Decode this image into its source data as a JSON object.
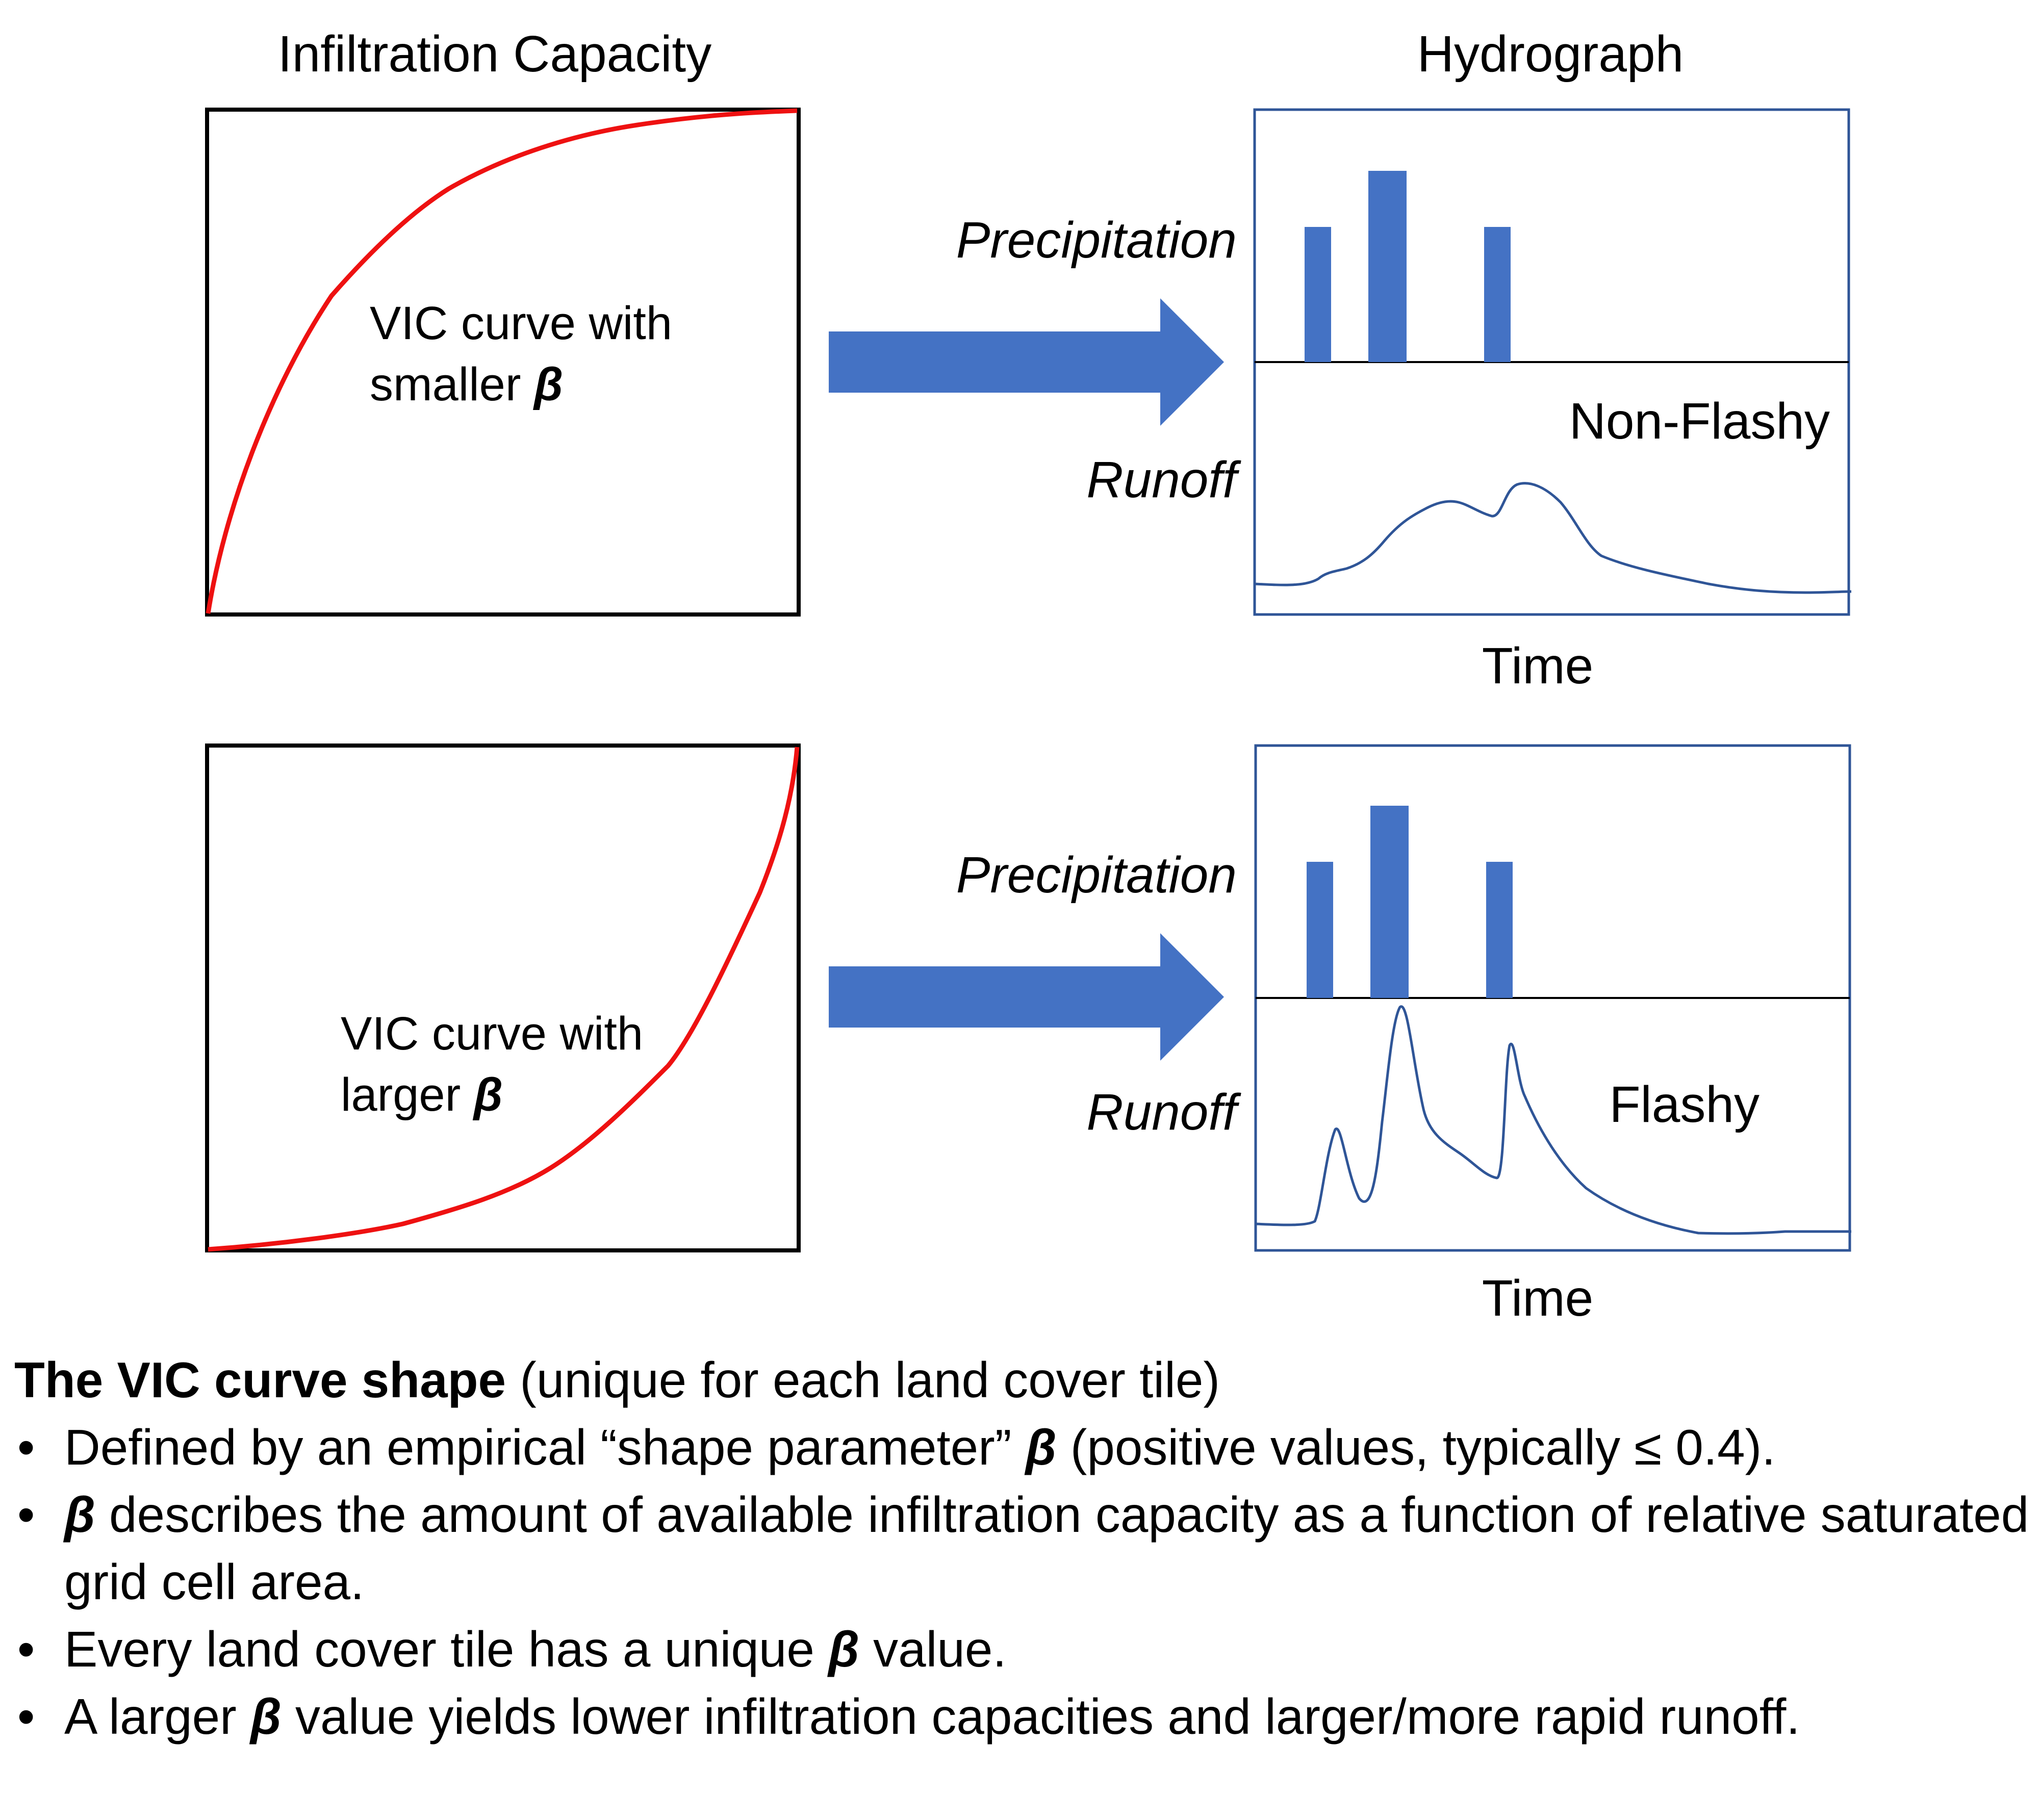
{
  "top": {
    "left_title": "Infiltration Capacity",
    "right_title": "Hydrograph",
    "curve_label_line1": "VIC curve with",
    "curve_label_line2": "smaller",
    "beta": "β",
    "precip_label": "Precipitation",
    "runoff_label": "Runoff",
    "flash_label": "Non-Flashy",
    "time_label": "Time"
  },
  "bottom": {
    "curve_label_line1": "VIC curve with",
    "curve_label_line2": "larger",
    "beta": "β",
    "precip_label": "Precipitation",
    "runoff_label": "Runoff",
    "flash_label": "Flashy",
    "time_label": "Time"
  },
  "colors": {
    "curve": "#ee1111",
    "bar": "#4472c4",
    "arrow": "#4472c4",
    "hydro_frame": "#2f5597",
    "runoff_line": "#2f5597",
    "box": "#000000"
  },
  "notes": {
    "heading_bold": "The VIC curve shape",
    "heading_rest": " (unique for each land cover tile)",
    "bullet_char": "•",
    "b1_pre": "Defined by an empirical “shape parameter” ",
    "b1_beta": "β",
    "b1_post": " (positive values, typically ≤ 0.4).",
    "b2_beta": "β",
    "b2_post": " describes the amount of available infiltration capacity as a function of relative saturated grid cell area.",
    "b3_pre": "Every land cover tile has a unique ",
    "b3_beta": "β",
    "b3_post": " value.",
    "b4_pre": "A larger ",
    "b4_beta": "β",
    "b4_post": " value yields lower infiltration capacities and larger/more rapid runoff."
  }
}
